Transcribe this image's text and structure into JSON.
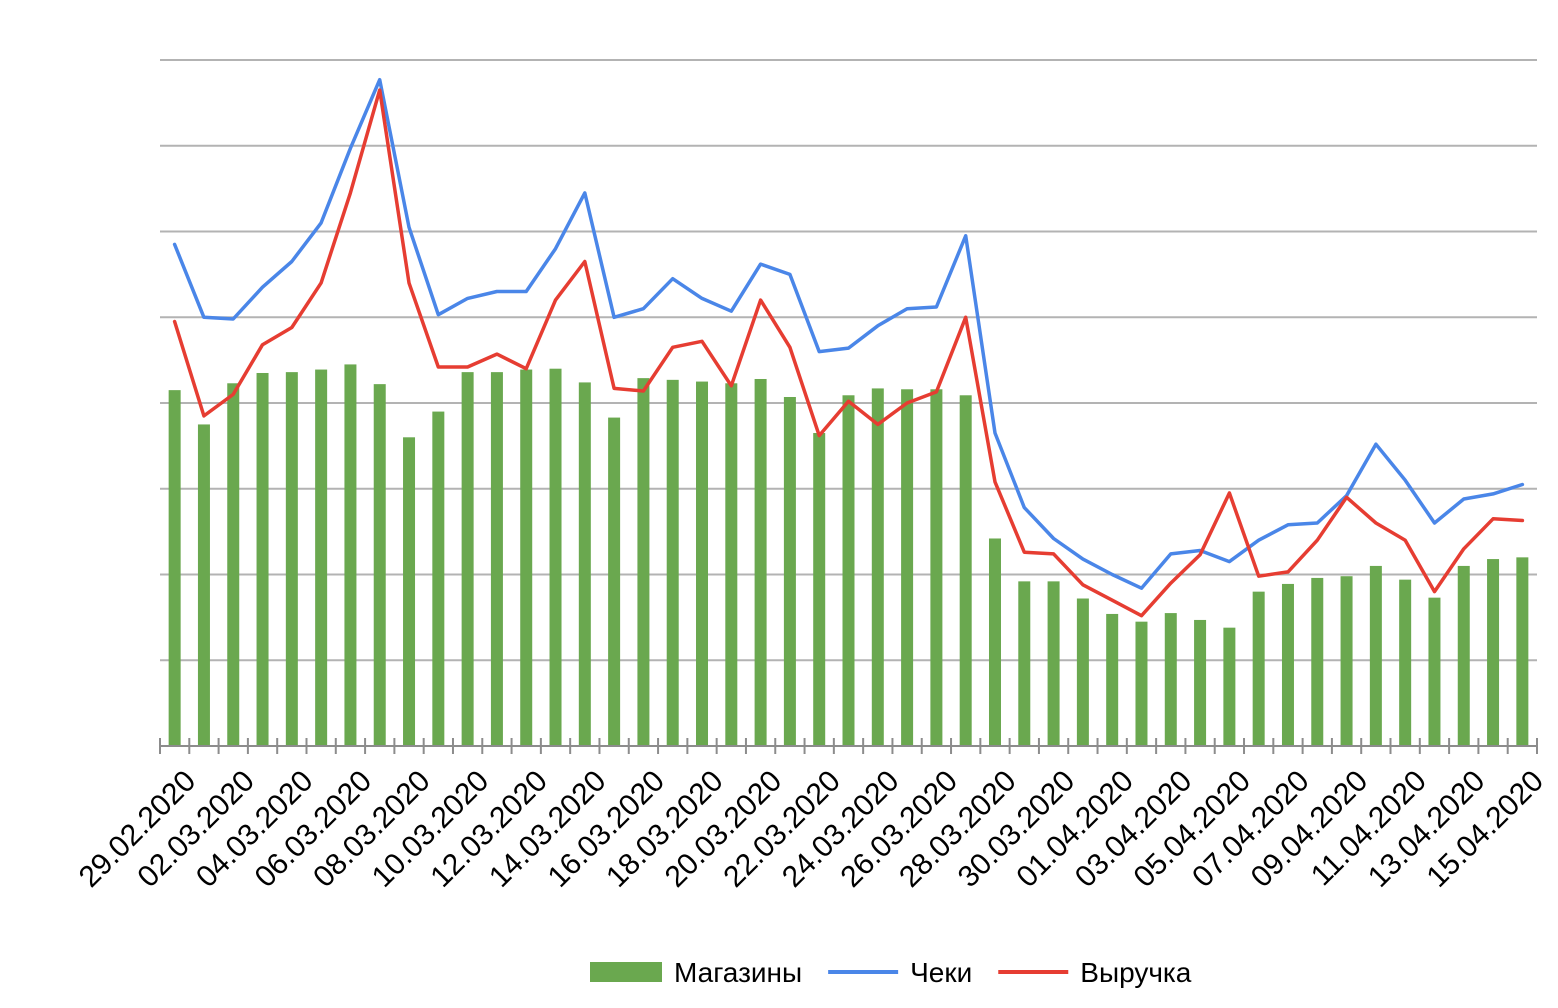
{
  "chart_data": {
    "type": "bar",
    "categories": [
      "29.02.2020",
      "01.03.2020",
      "02.03.2020",
      "03.03.2020",
      "04.03.2020",
      "05.03.2020",
      "06.03.2020",
      "07.03.2020",
      "08.03.2020",
      "09.03.2020",
      "10.03.2020",
      "11.03.2020",
      "12.03.2020",
      "13.03.2020",
      "14.03.2020",
      "15.03.2020",
      "16.03.2020",
      "17.03.2020",
      "18.03.2020",
      "19.03.2020",
      "20.03.2020",
      "21.03.2020",
      "22.03.2020",
      "23.03.2020",
      "24.03.2020",
      "25.03.2020",
      "26.03.2020",
      "27.03.2020",
      "28.03.2020",
      "29.03.2020",
      "30.03.2020",
      "31.03.2020",
      "01.04.2020",
      "02.04.2020",
      "03.04.2020",
      "04.04.2020",
      "05.04.2020",
      "06.04.2020",
      "07.04.2020",
      "08.04.2020",
      "09.04.2020",
      "10.04.2020",
      "11.04.2020",
      "12.04.2020",
      "13.04.2020",
      "14.04.2020",
      "15.04.2020"
    ],
    "x_tick_labels": [
      "29.02.2020",
      "02.03.2020",
      "04.03.2020",
      "06.03.2020",
      "08.03.2020",
      "10.03.2020",
      "12.03.2020",
      "14.03.2020",
      "16.03.2020",
      "18.03.2020",
      "20.03.2020",
      "22.03.2020",
      "24.03.2020",
      "26.03.2020",
      "28.03.2020",
      "30.03.2020",
      "01.04.2020",
      "03.04.2020",
      "05.04.2020",
      "07.04.2020",
      "09.04.2020",
      "11.04.2020",
      "13.04.2020",
      "15.04.2020"
    ],
    "series": [
      {
        "name": "Магазины",
        "kind": "bar",
        "color": "#6aa84f",
        "values": [
          4.15,
          3.75,
          4.23,
          4.35,
          4.36,
          4.39,
          4.45,
          4.22,
          3.6,
          3.9,
          4.36,
          4.36,
          4.39,
          4.4,
          4.24,
          3.83,
          4.29,
          4.27,
          4.25,
          4.23,
          4.28,
          4.07,
          3.65,
          4.09,
          4.17,
          4.16,
          4.16,
          4.09,
          2.42,
          1.92,
          1.92,
          1.72,
          1.54,
          1.45,
          1.55,
          1.47,
          1.38,
          1.8,
          1.89,
          1.96,
          1.98,
          2.1,
          1.94,
          1.73,
          2.1,
          2.18,
          2.2
        ]
      },
      {
        "name": "Чеки",
        "kind": "line",
        "color": "#4a86e8",
        "values": [
          5.85,
          5.0,
          4.98,
          5.35,
          5.65,
          6.1,
          6.97,
          7.77,
          6.05,
          5.03,
          5.22,
          5.3,
          5.3,
          5.8,
          6.45,
          5.0,
          5.1,
          5.45,
          5.22,
          5.07,
          5.62,
          5.5,
          4.6,
          4.64,
          4.9,
          5.1,
          5.12,
          5.95,
          3.65,
          2.78,
          2.42,
          2.18,
          2.0,
          1.84,
          2.24,
          2.28,
          2.15,
          2.4,
          2.58,
          2.6,
          2.92,
          3.52,
          3.1,
          2.6,
          2.88,
          2.94,
          3.05
        ]
      },
      {
        "name": "Выручка",
        "kind": "line",
        "color": "#e63d32",
        "values": [
          4.95,
          3.85,
          4.1,
          4.68,
          4.88,
          5.4,
          6.45,
          7.65,
          5.4,
          4.42,
          4.42,
          4.57,
          4.4,
          5.2,
          5.65,
          4.17,
          4.14,
          4.65,
          4.72,
          4.2,
          5.2,
          4.65,
          3.62,
          4.02,
          3.75,
          4.0,
          4.13,
          5.0,
          3.08,
          2.26,
          2.24,
          1.88,
          1.7,
          1.52,
          1.9,
          2.23,
          2.95,
          1.98,
          2.03,
          2.4,
          2.9,
          2.6,
          2.4,
          1.8,
          2.3,
          2.65,
          2.63
        ]
      }
    ],
    "ylim": [
      0,
      8
    ],
    "y_gridlines": [
      0,
      1,
      2,
      3,
      4,
      5,
      6,
      7,
      8
    ],
    "y_tick_labels_visible": false,
    "grid": true,
    "legend_position": "bottom",
    "title": "",
    "xlabel": "",
    "ylabel": ""
  }
}
